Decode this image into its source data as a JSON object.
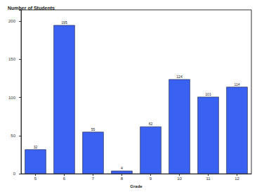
{
  "chart_data": {
    "type": "bar",
    "title": "Number of Students",
    "x_label": "Grade",
    "categories": [
      "5",
      "6",
      "7",
      "8",
      "9",
      "10",
      "11",
      "12"
    ],
    "values": [
      32,
      195,
      55,
      4,
      62,
      124,
      101,
      114
    ],
    "color": "#3a62f2",
    "ylim": [
      0,
      215
    ],
    "yticks": [
      0,
      50,
      100,
      150,
      200
    ],
    "grid": false,
    "data_labels": true
  }
}
